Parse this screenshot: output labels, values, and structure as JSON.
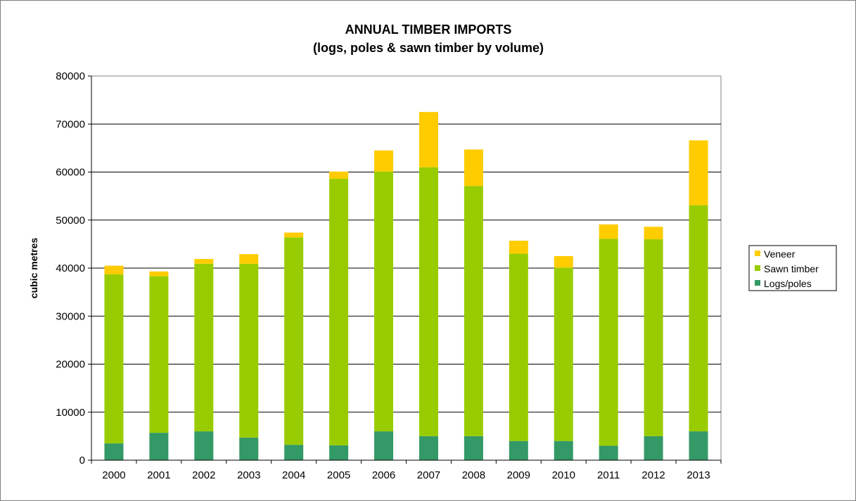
{
  "chart_data": {
    "type": "bar",
    "stacked": true,
    "title": "ANNUAL TIMBER IMPORTS",
    "subtitle": "(logs, poles & sawn timber by volume)",
    "xlabel": "",
    "ylabel": "cubic metres",
    "ylim": [
      0,
      80000
    ],
    "yticks": [
      0,
      10000,
      20000,
      30000,
      40000,
      50000,
      60000,
      70000,
      80000
    ],
    "grid": true,
    "legend_position": "right",
    "categories": [
      "2000",
      "2001",
      "2002",
      "2003",
      "2004",
      "2005",
      "2006",
      "2007",
      "2008",
      "2009",
      "2010",
      "2011",
      "2012",
      "2013"
    ],
    "series": [
      {
        "name": "Logs/poles",
        "color": "#339966",
        "values": [
          3500,
          5700,
          6000,
          4700,
          3200,
          3100,
          6000,
          5000,
          5000,
          4000,
          4000,
          3000,
          5000,
          6000
        ]
      },
      {
        "name": "Sawn timber",
        "color": "#99cc00",
        "values": [
          35200,
          32600,
          34900,
          36200,
          43200,
          55500,
          54100,
          56000,
          52100,
          39000,
          36100,
          43100,
          41000,
          47100
        ]
      },
      {
        "name": "Veneer",
        "color": "#ffcc00",
        "values": [
          1800,
          1000,
          1000,
          2000,
          1000,
          1500,
          4400,
          11500,
          7600,
          2700,
          2400,
          3000,
          2600,
          13500
        ]
      }
    ],
    "legend_order": [
      "Veneer",
      "Sawn timber",
      "Logs/poles"
    ]
  }
}
